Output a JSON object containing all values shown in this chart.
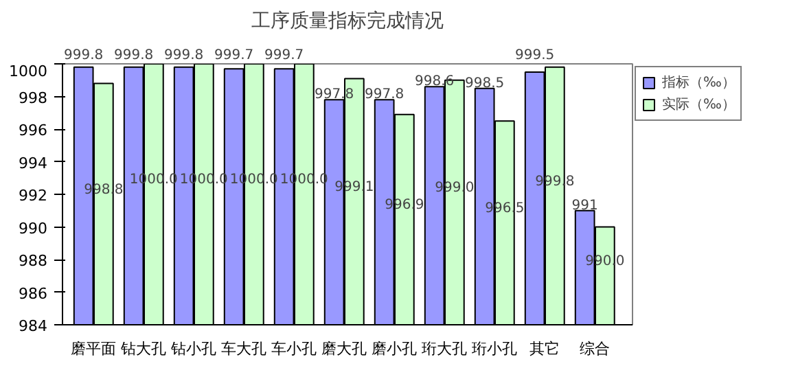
{
  "chart_data": {
    "type": "bar",
    "title": "工序质量指标完成情况",
    "categories": [
      "磨平面",
      "钻大孔",
      "钻小孔",
      "车大孔",
      "车小孔",
      "磨大孔",
      "磨小孔",
      "珩大孔",
      "珩小孔",
      "其它",
      "综合"
    ],
    "series": [
      {
        "name": "指标（‰）",
        "color": "#9999ff",
        "values": [
          999.8,
          999.8,
          999.8,
          999.7,
          999.7,
          997.8,
          997.8,
          998.6,
          998.5,
          999.5,
          991
        ],
        "value_labels": [
          "999.8",
          "999.8",
          "999.8",
          "999.7",
          "999.7",
          "997.8",
          "997.8",
          "998.6",
          "998.5",
          "999.5",
          "991"
        ]
      },
      {
        "name": "实际（‰）",
        "color": "#ccffcc",
        "values": [
          998.8,
          1000.0,
          1000.0,
          1000.0,
          1000.0,
          999.1,
          996.9,
          999.0,
          996.5,
          999.8,
          990.0
        ],
        "value_labels": [
          "998.8",
          "1000.0",
          "1000.0",
          "1000.0",
          "1000.0",
          "999.1",
          "996.9",
          "999.0",
          "996.5",
          "999.8",
          "990.0"
        ]
      }
    ],
    "ylim": [
      984,
      1000
    ],
    "yticks": [
      984,
      986,
      988,
      990,
      992,
      994,
      996,
      998,
      1000
    ],
    "grid": false,
    "legend": "top right"
  }
}
